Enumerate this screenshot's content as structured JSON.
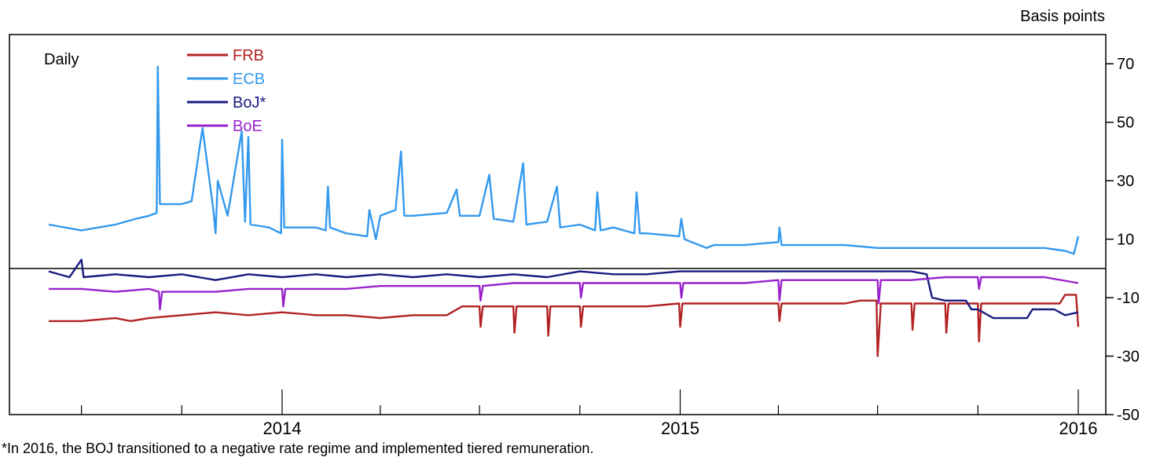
{
  "chart_data": {
    "type": "line",
    "ylabel": "Basis points",
    "annotation": "Daily",
    "ylim": [
      -50,
      80
    ],
    "yticks": [
      70,
      50,
      30,
      10,
      -10,
      -30,
      -50
    ],
    "xrange": [
      "2013-06-01",
      "2016-01-01"
    ],
    "xticks": [
      "2014",
      "2015",
      "2016"
    ],
    "legend": {
      "placement": "top-left"
    },
    "grid": false,
    "footnote": "*In 2016, the BOJ transitioned to a negative rate regime and implemented tiered remuneration.",
    "series": [
      {
        "name": "FRB",
        "color": "#b22222",
        "points": [
          [
            "2013-06-01",
            -18
          ],
          [
            "2013-07-01",
            -18
          ],
          [
            "2013-08-01",
            -17
          ],
          [
            "2013-08-15",
            -18
          ],
          [
            "2013-09-01",
            -17
          ],
          [
            "2013-10-01",
            -16
          ],
          [
            "2013-11-01",
            -15
          ],
          [
            "2013-12-01",
            -16
          ],
          [
            "2014-01-01",
            -15
          ],
          [
            "2014-02-01",
            -16
          ],
          [
            "2014-03-01",
            -16
          ],
          [
            "2014-04-01",
            -17
          ],
          [
            "2014-05-01",
            -16
          ],
          [
            "2014-06-01",
            -16
          ],
          [
            "2014-06-15",
            -13
          ],
          [
            "2014-07-01",
            -13
          ],
          [
            "2014-07-02",
            -20
          ],
          [
            "2014-07-04",
            -13
          ],
          [
            "2014-08-01",
            -13
          ],
          [
            "2014-08-02",
            -22
          ],
          [
            "2014-08-04",
            -13
          ],
          [
            "2014-09-01",
            -13
          ],
          [
            "2014-09-02",
            -23
          ],
          [
            "2014-09-04",
            -13
          ],
          [
            "2014-10-01",
            -13
          ],
          [
            "2014-10-02",
            -20
          ],
          [
            "2014-10-04",
            -13
          ],
          [
            "2014-11-01",
            -13
          ],
          [
            "2014-12-01",
            -13
          ],
          [
            "2014-12-31",
            -12
          ],
          [
            "2015-01-01",
            -20
          ],
          [
            "2015-01-03",
            -12
          ],
          [
            "2015-02-01",
            -12
          ],
          [
            "2015-03-01",
            -12
          ],
          [
            "2015-04-01",
            -12
          ],
          [
            "2015-04-02",
            -18
          ],
          [
            "2015-04-04",
            -12
          ],
          [
            "2015-05-01",
            -12
          ],
          [
            "2015-06-01",
            -12
          ],
          [
            "2015-06-15",
            -11
          ],
          [
            "2015-06-30",
            -11
          ],
          [
            "2015-07-01",
            -30
          ],
          [
            "2015-07-04",
            -12
          ],
          [
            "2015-08-01",
            -12
          ],
          [
            "2015-08-02",
            -21
          ],
          [
            "2015-08-04",
            -12
          ],
          [
            "2015-09-01",
            -12
          ],
          [
            "2015-09-02",
            -22
          ],
          [
            "2015-09-04",
            -12
          ],
          [
            "2015-10-01",
            -12
          ],
          [
            "2015-10-02",
            -25
          ],
          [
            "2015-10-04",
            -12
          ],
          [
            "2015-11-01",
            -12
          ],
          [
            "2015-12-01",
            -12
          ],
          [
            "2015-12-15",
            -12
          ],
          [
            "2015-12-20",
            -9
          ],
          [
            "2015-12-30",
            -9
          ],
          [
            "2016-01-01",
            -20
          ]
        ]
      },
      {
        "name": "ECB",
        "color": "#3399ee",
        "points": [
          [
            "2013-06-01",
            15
          ],
          [
            "2013-07-01",
            13
          ],
          [
            "2013-08-01",
            15
          ],
          [
            "2013-08-20",
            17
          ],
          [
            "2013-09-01",
            18
          ],
          [
            "2013-09-08",
            19
          ],
          [
            "2013-09-09",
            69
          ],
          [
            "2013-09-11",
            22
          ],
          [
            "2013-10-01",
            22
          ],
          [
            "2013-10-10",
            23
          ],
          [
            "2013-10-20",
            48
          ],
          [
            "2013-10-30",
            20
          ],
          [
            "2013-11-01",
            12
          ],
          [
            "2013-11-03",
            30
          ],
          [
            "2013-11-12",
            18
          ],
          [
            "2013-11-25",
            47
          ],
          [
            "2013-11-28",
            16
          ],
          [
            "2013-12-01",
            45
          ],
          [
            "2013-12-03",
            15
          ],
          [
            "2013-12-20",
            14
          ],
          [
            "2013-12-31",
            12
          ],
          [
            "2014-01-01",
            44
          ],
          [
            "2014-01-03",
            14
          ],
          [
            "2014-02-01",
            14
          ],
          [
            "2014-02-10",
            13
          ],
          [
            "2014-02-12",
            28
          ],
          [
            "2014-02-14",
            14
          ],
          [
            "2014-03-01",
            12
          ],
          [
            "2014-03-20",
            11
          ],
          [
            "2014-03-22",
            20
          ],
          [
            "2014-03-28",
            10
          ],
          [
            "2014-04-01",
            18
          ],
          [
            "2014-04-15",
            20
          ],
          [
            "2014-04-20",
            40
          ],
          [
            "2014-04-23",
            18
          ],
          [
            "2014-05-01",
            18
          ],
          [
            "2014-06-01",
            19
          ],
          [
            "2014-06-10",
            27
          ],
          [
            "2014-06-13",
            18
          ],
          [
            "2014-07-01",
            18
          ],
          [
            "2014-07-10",
            32
          ],
          [
            "2014-07-14",
            17
          ],
          [
            "2014-08-01",
            16
          ],
          [
            "2014-08-10",
            36
          ],
          [
            "2014-08-13",
            15
          ],
          [
            "2014-09-01",
            16
          ],
          [
            "2014-09-10",
            28
          ],
          [
            "2014-09-13",
            14
          ],
          [
            "2014-10-01",
            15
          ],
          [
            "2014-10-15",
            13
          ],
          [
            "2014-10-17",
            26
          ],
          [
            "2014-10-20",
            13
          ],
          [
            "2014-11-01",
            14
          ],
          [
            "2014-11-20",
            12
          ],
          [
            "2014-11-22",
            26
          ],
          [
            "2014-11-25",
            12
          ],
          [
            "2014-12-01",
            12
          ],
          [
            "2014-12-31",
            11
          ],
          [
            "2015-01-02",
            17
          ],
          [
            "2015-01-05",
            10
          ],
          [
            "2015-01-25",
            7
          ],
          [
            "2015-02-01",
            8
          ],
          [
            "2015-03-01",
            8
          ],
          [
            "2015-04-01",
            9
          ],
          [
            "2015-04-02",
            14
          ],
          [
            "2015-04-04",
            8
          ],
          [
            "2015-05-01",
            8
          ],
          [
            "2015-06-01",
            8
          ],
          [
            "2015-07-01",
            7
          ],
          [
            "2015-08-01",
            7
          ],
          [
            "2015-09-01",
            7
          ],
          [
            "2015-10-01",
            7
          ],
          [
            "2015-11-01",
            7
          ],
          [
            "2015-12-01",
            7
          ],
          [
            "2015-12-20",
            6
          ],
          [
            "2015-12-28",
            5
          ],
          [
            "2016-01-01",
            11
          ]
        ]
      },
      {
        "name": "BoJ*",
        "color": "#1a1a80",
        "points": [
          [
            "2013-06-01",
            -1
          ],
          [
            "2013-06-20",
            -3
          ],
          [
            "2013-07-01",
            3
          ],
          [
            "2013-07-03",
            -3
          ],
          [
            "2013-08-01",
            -2
          ],
          [
            "2013-09-01",
            -3
          ],
          [
            "2013-10-01",
            -2
          ],
          [
            "2013-11-01",
            -4
          ],
          [
            "2013-12-01",
            -2
          ],
          [
            "2014-01-01",
            -3
          ],
          [
            "2014-02-01",
            -2
          ],
          [
            "2014-03-01",
            -3
          ],
          [
            "2014-04-01",
            -2
          ],
          [
            "2014-05-01",
            -3
          ],
          [
            "2014-06-01",
            -2
          ],
          [
            "2014-07-01",
            -3
          ],
          [
            "2014-08-01",
            -2
          ],
          [
            "2014-09-01",
            -3
          ],
          [
            "2014-10-01",
            -1
          ],
          [
            "2014-11-01",
            -2
          ],
          [
            "2014-12-01",
            -2
          ],
          [
            "2015-01-01",
            -1
          ],
          [
            "2015-02-01",
            -1
          ],
          [
            "2015-03-01",
            -1
          ],
          [
            "2015-04-01",
            -1
          ],
          [
            "2015-05-01",
            -1
          ],
          [
            "2015-06-01",
            -1
          ],
          [
            "2015-07-01",
            -1
          ],
          [
            "2015-08-01",
            -1
          ],
          [
            "2015-08-15",
            -2
          ],
          [
            "2015-08-20",
            -10
          ],
          [
            "2015-09-01",
            -11
          ],
          [
            "2015-09-20",
            -11
          ],
          [
            "2015-09-25",
            -14
          ],
          [
            "2015-10-01",
            -14
          ],
          [
            "2015-10-15",
            -17
          ],
          [
            "2015-11-15",
            -17
          ],
          [
            "2015-11-20",
            -14
          ],
          [
            "2015-12-10",
            -14
          ],
          [
            "2015-12-20",
            -16
          ],
          [
            "2016-01-01",
            -15
          ]
        ]
      },
      {
        "name": "BoE",
        "color": "#9922cc",
        "points": [
          [
            "2013-06-01",
            -7
          ],
          [
            "2013-07-01",
            -7
          ],
          [
            "2013-08-01",
            -8
          ],
          [
            "2013-09-01",
            -7
          ],
          [
            "2013-09-10",
            -8
          ],
          [
            "2013-09-11",
            -14
          ],
          [
            "2013-09-13",
            -8
          ],
          [
            "2013-10-01",
            -8
          ],
          [
            "2013-11-01",
            -8
          ],
          [
            "2013-12-01",
            -7
          ],
          [
            "2014-01-01",
            -7
          ],
          [
            "2014-01-02",
            -13
          ],
          [
            "2014-01-04",
            -7
          ],
          [
            "2014-02-01",
            -7
          ],
          [
            "2014-03-01",
            -7
          ],
          [
            "2014-04-01",
            -6
          ],
          [
            "2014-05-01",
            -6
          ],
          [
            "2014-06-01",
            -6
          ],
          [
            "2014-07-01",
            -6
          ],
          [
            "2014-07-02",
            -11
          ],
          [
            "2014-07-04",
            -6
          ],
          [
            "2014-08-01",
            -5
          ],
          [
            "2014-09-01",
            -5
          ],
          [
            "2014-10-01",
            -5
          ],
          [
            "2014-10-02",
            -10
          ],
          [
            "2014-10-04",
            -5
          ],
          [
            "2014-11-01",
            -5
          ],
          [
            "2014-12-01",
            -5
          ],
          [
            "2015-01-01",
            -5
          ],
          [
            "2015-01-02",
            -10
          ],
          [
            "2015-01-04",
            -5
          ],
          [
            "2015-02-01",
            -5
          ],
          [
            "2015-03-01",
            -5
          ],
          [
            "2015-04-01",
            -4
          ],
          [
            "2015-04-02",
            -11
          ],
          [
            "2015-04-04",
            -4
          ],
          [
            "2015-05-01",
            -4
          ],
          [
            "2015-06-01",
            -4
          ],
          [
            "2015-07-01",
            -4
          ],
          [
            "2015-07-02",
            -12
          ],
          [
            "2015-07-04",
            -4
          ],
          [
            "2015-08-01",
            -4
          ],
          [
            "2015-09-01",
            -3
          ],
          [
            "2015-10-01",
            -3
          ],
          [
            "2015-10-02",
            -7
          ],
          [
            "2015-10-04",
            -3
          ],
          [
            "2015-11-01",
            -3
          ],
          [
            "2015-12-01",
            -3
          ],
          [
            "2016-01-01",
            -5
          ]
        ]
      }
    ]
  }
}
